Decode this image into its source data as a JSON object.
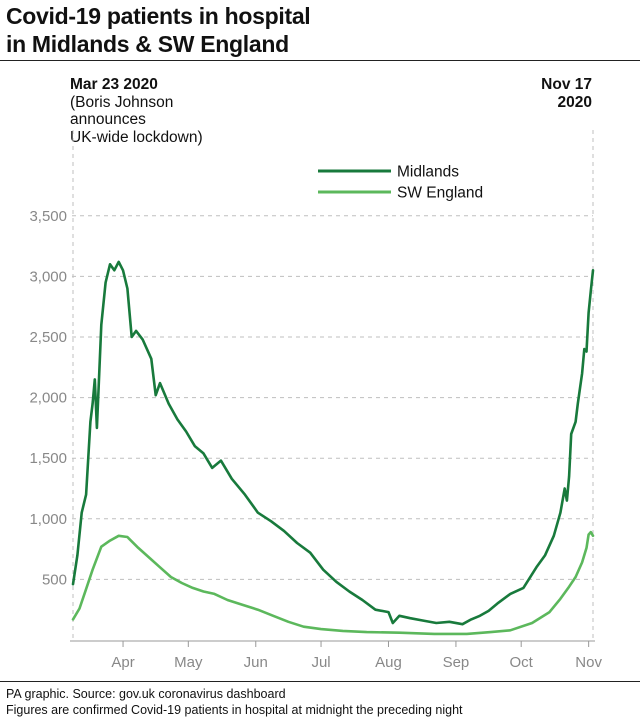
{
  "header": {
    "title_line1": "Covid-19 patients in hospital",
    "title_line2": "in Midlands & SW England"
  },
  "annotations": {
    "left_date": "Mar 23 2020",
    "left_line1": "(Boris Johnson",
    "left_line2": "announces",
    "left_line3": "UK-wide lockdown)",
    "right_date_line1": "Nov 17",
    "right_date_line2": "2020"
  },
  "footer": {
    "source": "PA graphic. Source: gov.uk coronavirus dashboard",
    "note": "Figures are confirmed Covid-19 patients in hospital at midnight the preceding night"
  },
  "colors": {
    "midlands": "#187a3c",
    "sw_england": "#5cb85c",
    "grid": "#bfbfbf"
  },
  "chart_data": {
    "type": "line",
    "title": "Covid-19 patients in hospital in Midlands & SW England",
    "xlabel": "",
    "ylabel": "",
    "x_range": [
      "2020-03-23",
      "2020-11-17"
    ],
    "ylim": [
      0,
      3700
    ],
    "yticks": [
      500,
      1000,
      1500,
      2000,
      2500,
      3000,
      3500
    ],
    "ytick_labels": [
      "500",
      "1,000",
      "1,500",
      "2,000",
      "2,500",
      "3,000",
      "3,500"
    ],
    "xticks": [
      {
        "label": "Apr",
        "date": "2020-04-15"
      },
      {
        "label": "May",
        "date": "2020-05-15"
      },
      {
        "label": "Jun",
        "date": "2020-06-15"
      },
      {
        "label": "Jul",
        "date": "2020-07-15"
      },
      {
        "label": "Aug",
        "date": "2020-08-15"
      },
      {
        "label": "Sep",
        "date": "2020-09-15"
      },
      {
        "label": "Oct",
        "date": "2020-10-15"
      },
      {
        "label": "Nov",
        "date": "2020-11-15"
      }
    ],
    "grid": true,
    "legend_position": "top-center",
    "series": [
      {
        "name": "Midlands",
        "points": [
          [
            "2020-03-23",
            460
          ],
          [
            "2020-03-25",
            700
          ],
          [
            "2020-03-27",
            1050
          ],
          [
            "2020-03-29",
            1200
          ],
          [
            "2020-03-31",
            1800
          ],
          [
            "2020-04-01",
            1950
          ],
          [
            "2020-04-02",
            2150
          ],
          [
            "2020-04-03",
            1750
          ],
          [
            "2020-04-05",
            2600
          ],
          [
            "2020-04-07",
            2950
          ],
          [
            "2020-04-09",
            3100
          ],
          [
            "2020-04-11",
            3050
          ],
          [
            "2020-04-13",
            3120
          ],
          [
            "2020-04-15",
            3050
          ],
          [
            "2020-04-17",
            2900
          ],
          [
            "2020-04-19",
            2500
          ],
          [
            "2020-04-21",
            2550
          ],
          [
            "2020-04-24",
            2480
          ],
          [
            "2020-04-28",
            2320
          ],
          [
            "2020-04-30",
            2020
          ],
          [
            "2020-05-02",
            2120
          ],
          [
            "2020-05-06",
            1950
          ],
          [
            "2020-05-10",
            1820
          ],
          [
            "2020-05-14",
            1720
          ],
          [
            "2020-05-18",
            1600
          ],
          [
            "2020-05-22",
            1540
          ],
          [
            "2020-05-26",
            1420
          ],
          [
            "2020-05-30",
            1480
          ],
          [
            "2020-06-04",
            1330
          ],
          [
            "2020-06-10",
            1200
          ],
          [
            "2020-06-16",
            1050
          ],
          [
            "2020-06-22",
            980
          ],
          [
            "2020-06-28",
            900
          ],
          [
            "2020-07-04",
            800
          ],
          [
            "2020-07-10",
            720
          ],
          [
            "2020-07-16",
            580
          ],
          [
            "2020-07-22",
            480
          ],
          [
            "2020-07-28",
            400
          ],
          [
            "2020-08-03",
            330
          ],
          [
            "2020-08-09",
            250
          ],
          [
            "2020-08-15",
            230
          ],
          [
            "2020-08-17",
            140
          ],
          [
            "2020-08-20",
            200
          ],
          [
            "2020-08-25",
            180
          ],
          [
            "2020-08-31",
            160
          ],
          [
            "2020-09-06",
            140
          ],
          [
            "2020-09-12",
            150
          ],
          [
            "2020-09-18",
            130
          ],
          [
            "2020-09-22",
            170
          ],
          [
            "2020-09-26",
            200
          ],
          [
            "2020-09-30",
            240
          ],
          [
            "2020-10-04",
            300
          ],
          [
            "2020-10-10",
            380
          ],
          [
            "2020-10-16",
            430
          ],
          [
            "2020-10-22",
            600
          ],
          [
            "2020-10-26",
            700
          ],
          [
            "2020-10-30",
            860
          ],
          [
            "2020-11-02",
            1050
          ],
          [
            "2020-11-04",
            1250
          ],
          [
            "2020-11-05",
            1150
          ],
          [
            "2020-11-06",
            1350
          ],
          [
            "2020-11-07",
            1700
          ],
          [
            "2020-11-09",
            1800
          ],
          [
            "2020-11-10",
            1950
          ],
          [
            "2020-11-12",
            2200
          ],
          [
            "2020-11-13",
            2400
          ],
          [
            "2020-11-14",
            2380
          ],
          [
            "2020-11-15",
            2700
          ],
          [
            "2020-11-16",
            2880
          ],
          [
            "2020-11-17",
            3050
          ]
        ]
      },
      {
        "name": "SW England",
        "points": [
          [
            "2020-03-23",
            170
          ],
          [
            "2020-03-26",
            260
          ],
          [
            "2020-03-29",
            420
          ],
          [
            "2020-04-01",
            580
          ],
          [
            "2020-04-05",
            770
          ],
          [
            "2020-04-09",
            820
          ],
          [
            "2020-04-13",
            860
          ],
          [
            "2020-04-17",
            850
          ],
          [
            "2020-04-22",
            760
          ],
          [
            "2020-04-27",
            680
          ],
          [
            "2020-05-02",
            600
          ],
          [
            "2020-05-07",
            520
          ],
          [
            "2020-05-12",
            470
          ],
          [
            "2020-05-17",
            430
          ],
          [
            "2020-05-22",
            400
          ],
          [
            "2020-05-27",
            380
          ],
          [
            "2020-06-02",
            330
          ],
          [
            "2020-06-09",
            290
          ],
          [
            "2020-06-16",
            250
          ],
          [
            "2020-06-23",
            200
          ],
          [
            "2020-06-30",
            150
          ],
          [
            "2020-07-07",
            110
          ],
          [
            "2020-07-15",
            90
          ],
          [
            "2020-07-25",
            75
          ],
          [
            "2020-08-05",
            65
          ],
          [
            "2020-08-20",
            60
          ],
          [
            "2020-09-05",
            50
          ],
          [
            "2020-09-20",
            50
          ],
          [
            "2020-10-01",
            65
          ],
          [
            "2020-10-10",
            80
          ],
          [
            "2020-10-20",
            140
          ],
          [
            "2020-10-28",
            230
          ],
          [
            "2020-11-02",
            340
          ],
          [
            "2020-11-06",
            440
          ],
          [
            "2020-11-09",
            520
          ],
          [
            "2020-11-12",
            640
          ],
          [
            "2020-11-14",
            760
          ],
          [
            "2020-11-15",
            870
          ],
          [
            "2020-11-16",
            890
          ],
          [
            "2020-11-17",
            860
          ]
        ]
      }
    ]
  }
}
